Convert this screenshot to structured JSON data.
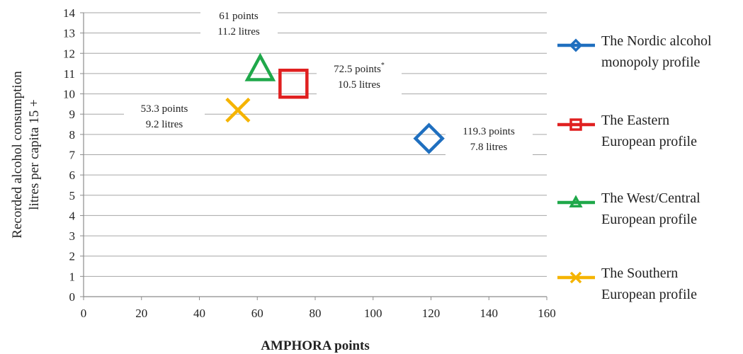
{
  "chart_data": {
    "type": "scatter",
    "xlabel": "AMPHORA points",
    "ylabel_lines": [
      "Recorded alcohol consumption",
      "litres per capita 15 +"
    ],
    "xlim": [
      0,
      160
    ],
    "ylim": [
      0,
      14
    ],
    "xticks": [
      "0",
      "20",
      "40",
      "60",
      "80",
      "100",
      "120",
      "140",
      "160"
    ],
    "yticks": [
      "0",
      "1",
      "2",
      "3",
      "4",
      "5",
      "6",
      "7",
      "8",
      "9",
      "10",
      "11",
      "12",
      "13",
      "14"
    ],
    "grid": "horizontal",
    "legend_position": "right",
    "series": [
      {
        "name_lines": [
          "The Nordic alcohol",
          "monopoly profile"
        ],
        "marker": "diamond",
        "color": "#1f6fbf",
        "x": 119.3,
        "y": 7.8,
        "label_lines": [
          "119.3 points",
          "7.8 litres"
        ]
      },
      {
        "name_lines": [
          "The Eastern",
          "European profile"
        ],
        "marker": "square",
        "color": "#e02020",
        "x": 72.5,
        "y": 10.5,
        "label_lines": [
          "72.5 points*",
          "10.5 litres"
        ]
      },
      {
        "name_lines": [
          "The West/Central",
          "European profile"
        ],
        "marker": "triangle",
        "color": "#1fa84a",
        "x": 61,
        "y": 11.2,
        "label_lines": [
          "61 points",
          "11.2 litres"
        ]
      },
      {
        "name_lines": [
          "The Southern",
          "European profile"
        ],
        "marker": "x",
        "color": "#f5b400",
        "x": 53.3,
        "y": 9.2,
        "label_lines": [
          "53.3 points",
          "9.2 litres"
        ]
      }
    ]
  }
}
